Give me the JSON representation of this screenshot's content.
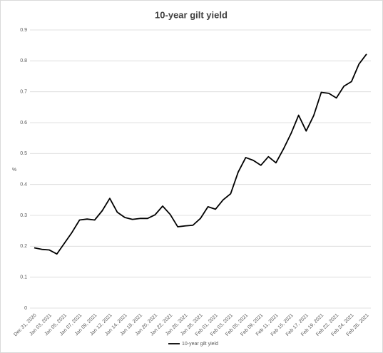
{
  "chart_data": {
    "type": "line",
    "title": "10-year gilt yield",
    "y_label": "%",
    "categories": [
      "Dec 31, 2020",
      null,
      "Jan 03, 2021",
      null,
      "Jan 05, 2021",
      null,
      "Jan 07, 2021",
      null,
      "Jan 09, 2021",
      null,
      "Jan 12, 2021",
      null,
      "Jan 14, 2021",
      null,
      "Jan 18, 2021",
      null,
      "Jan 20, 2021",
      null,
      "Jan 22, 2021",
      null,
      "Jan 26, 2021",
      null,
      "Jan 28, 2021",
      null,
      "Feb 01, 2021",
      null,
      "Feb 03, 2021",
      null,
      "Feb 05, 2021",
      null,
      "Feb 09, 2021",
      null,
      "Feb 11, 2021",
      null,
      "Feb 15, 2021",
      null,
      "Feb 17, 2021",
      null,
      "Feb 19, 2021",
      null,
      "Feb 22, 2021",
      null,
      "Feb 24, 2021",
      null,
      "Feb 26, 2021"
    ],
    "series": [
      {
        "name": "10-year gilt yield",
        "color": "#000000",
        "values": [
          0.195,
          0.19,
          0.188,
          0.175,
          0.21,
          0.245,
          0.285,
          0.288,
          0.285,
          0.315,
          0.355,
          0.31,
          0.293,
          0.287,
          0.29,
          0.29,
          0.302,
          0.33,
          0.303,
          0.263,
          0.266,
          0.268,
          0.29,
          0.328,
          0.32,
          0.35,
          0.37,
          0.44,
          0.487,
          0.478,
          0.462,
          0.49,
          0.47,
          0.515,
          0.565,
          0.624,
          0.573,
          0.623,
          0.698,
          0.695,
          0.68,
          0.718,
          0.733,
          0.79,
          0.822
        ]
      }
    ],
    "ylim": [
      0,
      0.9
    ],
    "yticks": [
      0,
      0.1,
      0.2,
      0.3,
      0.4,
      0.5,
      0.6,
      0.7,
      0.8,
      0.9
    ],
    "grid": true,
    "legend": "bottom"
  }
}
